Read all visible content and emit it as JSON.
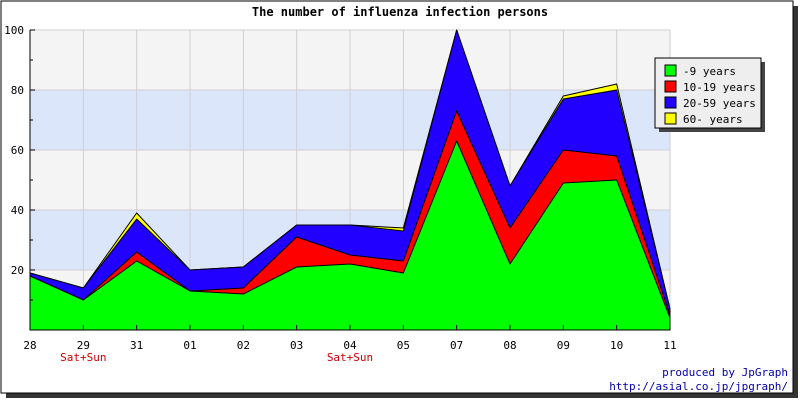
{
  "chart_data": {
    "type": "area",
    "stacked": true,
    "title": "The number of influenza infection persons",
    "categories": [
      "28",
      "29",
      "31",
      "01",
      "02",
      "03",
      "04",
      "05",
      "07",
      "08",
      "09",
      "10",
      "11"
    ],
    "category_notes": [
      "",
      "Sat+Sun",
      "",
      "",
      "",
      "",
      "Sat+Sun",
      "",
      "",
      "",
      "",
      "",
      ""
    ],
    "ylim": [
      0,
      100
    ],
    "yticks": [
      20,
      40,
      60,
      80,
      100
    ],
    "grid": true,
    "legend_position": "right",
    "series": [
      {
        "name": "-9 years",
        "color": "#00ff00",
        "values": [
          18,
          10,
          23,
          13,
          12,
          21,
          22,
          19,
          63,
          22,
          49,
          50,
          4
        ]
      },
      {
        "name": "10-19 years",
        "color": "#ff0000",
        "values": [
          0,
          0,
          3,
          0,
          2,
          10,
          3,
          4,
          10,
          12,
          11,
          8,
          1
        ]
      },
      {
        "name": "20-59 years",
        "color": "#2200ff",
        "values": [
          1,
          4,
          11,
          7,
          7,
          4,
          10,
          10,
          27,
          14,
          17,
          22,
          2
        ]
      },
      {
        "name": "60- years",
        "color": "#ffff00",
        "values": [
          0,
          0,
          2,
          0,
          0,
          0,
          0,
          1,
          0,
          0,
          1,
          2,
          0
        ]
      }
    ]
  },
  "footer": {
    "line1": "produced by JpGraph",
    "line2": "http://asial.co.jp/jpgraph/"
  },
  "colors": {
    "band_light": "#f4f4f4",
    "band_blue": "#dce6fb",
    "grid": "#cfcfcf",
    "note": "#cc0000",
    "footer": "#0000aa"
  }
}
